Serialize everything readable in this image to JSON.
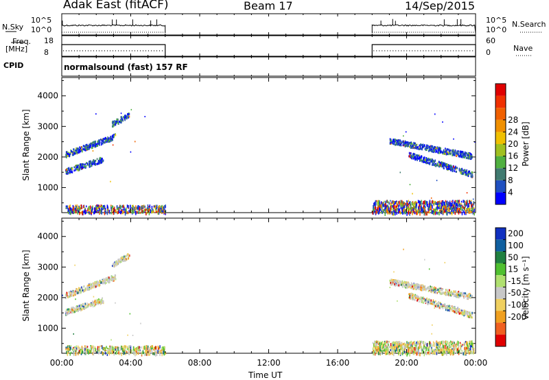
{
  "header": {
    "station": "Adak East (fitACF)",
    "beam": "Beam 17",
    "date": "14/Sep/2015"
  },
  "panels": {
    "nsky_label": "N.Sky",
    "nsky_ticks": [
      "10^5",
      "10^0"
    ],
    "nsearch_label": "N.Search",
    "nsearch_ticks": [
      "10^5",
      "10^0"
    ],
    "freq_label": "Freq.",
    "freq_unit": "[MHz]",
    "freq_ticks": [
      "18",
      "8"
    ],
    "nave_label": "Nave",
    "nave_ticks": [
      "60",
      "0"
    ],
    "cpid_label": "CPID",
    "cpid_value": "normalsound (fast) 157 RF"
  },
  "chart_data": [
    {
      "type": "heatmap",
      "name": "power",
      "ylabel": "Slant Range [km]",
      "xlabel": "Time UT",
      "ylim": [
        180,
        4600
      ],
      "xlim": [
        0,
        24
      ],
      "yticks": [
        "1000",
        "2000",
        "3000",
        "4000"
      ],
      "xticks": [
        "00:00",
        "04:00",
        "08:00",
        "12:00",
        "16:00",
        "20:00",
        "00:00"
      ],
      "colorbar": {
        "label": "Power [dB]",
        "ticks": [
          "4",
          "8",
          "12",
          "16",
          "20",
          "24",
          "28"
        ],
        "colors": [
          "#0000ff",
          "#2050c0",
          "#407a70",
          "#50b040",
          "#a0c020",
          "#f0c000",
          "#f09000",
          "#f06000",
          "#f03000",
          "#e00000"
        ]
      },
      "data_gaps_hours": [
        [
          6,
          18
        ]
      ],
      "echo_bands": [
        {
          "t_start": 0.2,
          "t_end": 3.1,
          "range_start": 2100,
          "range_end": 2700
        },
        {
          "t_start": 0.2,
          "t_end": 2.4,
          "range_start": 1550,
          "range_end": 1950
        },
        {
          "t_start": 2.9,
          "t_end": 3.9,
          "range_start": 3100,
          "range_end": 3400
        },
        {
          "t_start": 19.0,
          "t_end": 23.8,
          "range_start": 2550,
          "range_end": 2050
        },
        {
          "t_start": 20.1,
          "t_end": 23.8,
          "range_start": 2100,
          "range_end": 1450
        }
      ]
    },
    {
      "type": "heatmap",
      "name": "velocity",
      "ylabel": "Slant Range [km]",
      "xlabel": "Time UT",
      "ylim": [
        180,
        4600
      ],
      "xlim": [
        0,
        24
      ],
      "yticks": [
        "1000",
        "2000",
        "3000",
        "4000"
      ],
      "xticks": [
        "00:00",
        "04:00",
        "08:00",
        "12:00",
        "16:00",
        "20:00",
        "00:00"
      ],
      "colorbar": {
        "label": "Velocity [m s⁻¹]",
        "ticks": [
          "200",
          "100",
          "50",
          "15",
          "-15",
          "-50",
          "-100",
          "-200"
        ],
        "colors": [
          "#1030c0",
          "#1060a0",
          "#208040",
          "#50c030",
          "#b0e070",
          "#c8c8c8",
          "#f0d060",
          "#f0a020",
          "#f06020",
          "#e00000"
        ]
      }
    }
  ]
}
